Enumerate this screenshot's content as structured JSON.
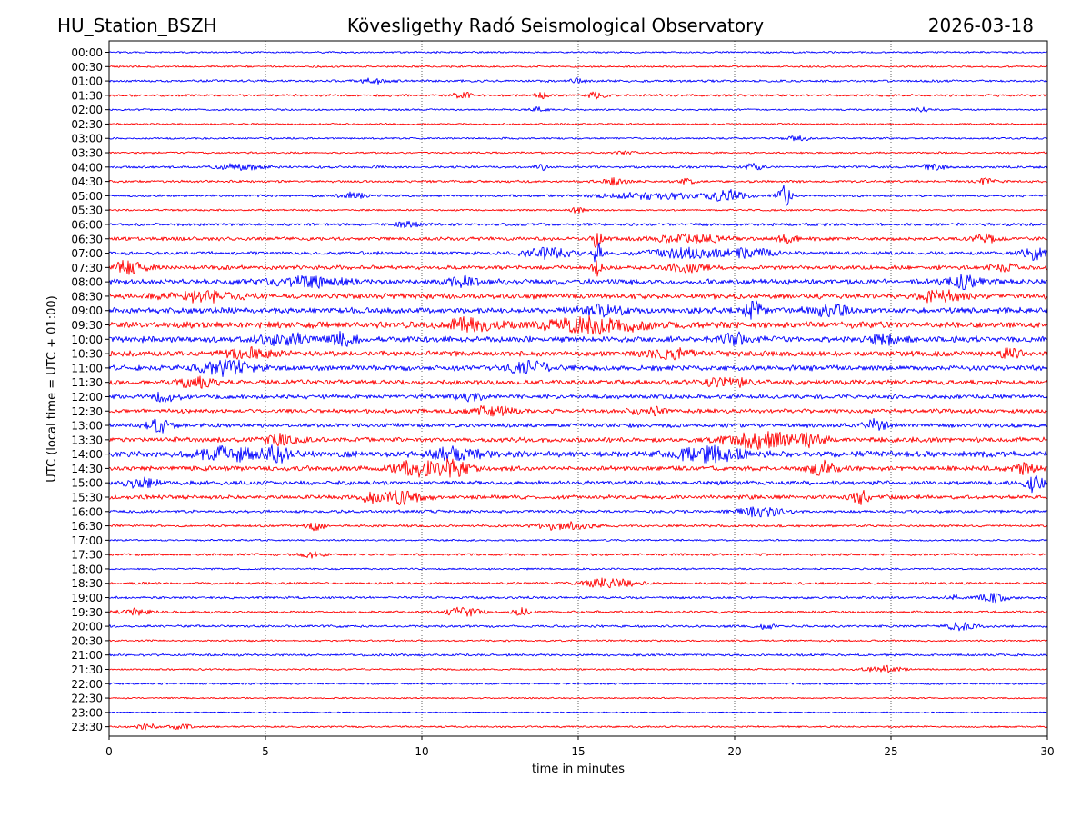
{
  "header": {
    "station": "HU_Station_BSZH",
    "observatory": "Kövesligethy Radó Seismological Observatory",
    "date": "2026-03-18"
  },
  "chart_data": {
    "type": "line",
    "title": "Kövesligethy Radó Seismological Observatory",
    "xlabel": "time in minutes",
    "ylabel": "UTC (local time = UTC + 01:00)",
    "xlim": [
      0,
      30
    ],
    "x_ticks": [
      "0",
      "5",
      "10",
      "15",
      "20",
      "25",
      "30"
    ],
    "grid": "vertical dotted at 5-minute intervals",
    "trace_colors": [
      "#0000ff",
      "#ff0000"
    ],
    "traces": [
      {
        "label": "00:00",
        "color": "#0000ff",
        "amplitude": 0.15,
        "bursts": []
      },
      {
        "label": "00:30",
        "color": "#ff0000",
        "amplitude": 0.15,
        "bursts": []
      },
      {
        "label": "01:00",
        "color": "#0000ff",
        "amplitude": 0.2,
        "bursts": [
          {
            "t": 8.5,
            "a": 0.35,
            "w": 0.3
          },
          {
            "t": 15,
            "a": 0.3,
            "w": 0.2
          }
        ]
      },
      {
        "label": "01:30",
        "color": "#ff0000",
        "amplitude": 0.2,
        "bursts": [
          {
            "t": 11.3,
            "a": 0.4,
            "w": 0.2
          },
          {
            "t": 13.8,
            "a": 0.4,
            "w": 0.15
          },
          {
            "t": 15.6,
            "a": 0.45,
            "w": 0.2
          }
        ]
      },
      {
        "label": "02:00",
        "color": "#0000ff",
        "amplitude": 0.15,
        "bursts": [
          {
            "t": 13.7,
            "a": 0.3,
            "w": 0.2
          },
          {
            "t": 26,
            "a": 0.3,
            "w": 0.2
          }
        ]
      },
      {
        "label": "02:30",
        "color": "#ff0000",
        "amplitude": 0.15,
        "bursts": []
      },
      {
        "label": "03:00",
        "color": "#0000ff",
        "amplitude": 0.15,
        "bursts": [
          {
            "t": 22,
            "a": 0.3,
            "w": 0.3
          }
        ]
      },
      {
        "label": "03:30",
        "color": "#ff0000",
        "amplitude": 0.15,
        "bursts": [
          {
            "t": 16.5,
            "a": 0.3,
            "w": 0.2
          }
        ]
      },
      {
        "label": "04:00",
        "color": "#0000ff",
        "amplitude": 0.2,
        "bursts": [
          {
            "t": 4.2,
            "a": 0.45,
            "w": 0.5
          },
          {
            "t": 13.8,
            "a": 0.4,
            "w": 0.15
          },
          {
            "t": 20.6,
            "a": 0.45,
            "w": 0.2
          },
          {
            "t": 26.3,
            "a": 0.35,
            "w": 0.3
          }
        ]
      },
      {
        "label": "04:30",
        "color": "#ff0000",
        "amplitude": 0.2,
        "bursts": [
          {
            "t": 16.1,
            "a": 0.5,
            "w": 0.3
          },
          {
            "t": 18.5,
            "a": 0.45,
            "w": 0.15
          },
          {
            "t": 28,
            "a": 0.4,
            "w": 0.2
          }
        ]
      },
      {
        "label": "05:00",
        "color": "#0000ff",
        "amplitude": 0.2,
        "bursts": [
          {
            "t": 7.8,
            "a": 0.45,
            "w": 0.3
          },
          {
            "t": 17.5,
            "a": 0.45,
            "w": 1.2
          },
          {
            "t": 19.8,
            "a": 0.7,
            "w": 0.4
          },
          {
            "t": 21.6,
            "a": 1.6,
            "w": 0.15
          }
        ]
      },
      {
        "label": "05:30",
        "color": "#ff0000",
        "amplitude": 0.15,
        "bursts": [
          {
            "t": 15,
            "a": 0.45,
            "w": 0.15
          }
        ]
      },
      {
        "label": "06:00",
        "color": "#0000ff",
        "amplitude": 0.25,
        "bursts": [
          {
            "t": 9.5,
            "a": 0.4,
            "w": 0.3
          }
        ]
      },
      {
        "label": "06:30",
        "color": "#ff0000",
        "amplitude": 0.3,
        "bursts": [
          {
            "t": 15.6,
            "a": 1.3,
            "w": 0.1
          },
          {
            "t": 18.5,
            "a": 0.6,
            "w": 0.8
          },
          {
            "t": 21.6,
            "a": 0.5,
            "w": 0.3
          },
          {
            "t": 28,
            "a": 0.5,
            "w": 0.3
          }
        ]
      },
      {
        "label": "07:00",
        "color": "#0000ff",
        "amplitude": 0.3,
        "bursts": [
          {
            "t": 14,
            "a": 0.7,
            "w": 0.6
          },
          {
            "t": 15.6,
            "a": 1.6,
            "w": 0.1
          },
          {
            "t": 18.3,
            "a": 0.6,
            "w": 0.8
          },
          {
            "t": 20.4,
            "a": 0.7,
            "w": 0.6
          },
          {
            "t": 29.6,
            "a": 0.8,
            "w": 0.3
          }
        ]
      },
      {
        "label": "07:30",
        "color": "#ff0000",
        "amplitude": 0.35,
        "bursts": [
          {
            "t": 0.6,
            "a": 0.8,
            "w": 0.4
          },
          {
            "t": 15.6,
            "a": 1.2,
            "w": 0.1
          },
          {
            "t": 18.5,
            "a": 0.5,
            "w": 0.5
          },
          {
            "t": 28.6,
            "a": 0.5,
            "w": 0.3
          }
        ]
      },
      {
        "label": "08:00",
        "color": "#0000ff",
        "amplitude": 0.45,
        "bursts": [
          {
            "t": 6.5,
            "a": 0.7,
            "w": 0.8
          },
          {
            "t": 11.3,
            "a": 0.7,
            "w": 0.3
          },
          {
            "t": 27.2,
            "a": 0.8,
            "w": 0.5
          }
        ]
      },
      {
        "label": "08:30",
        "color": "#ff0000",
        "amplitude": 0.45,
        "bursts": [
          {
            "t": 3,
            "a": 0.7,
            "w": 0.8
          },
          {
            "t": 26.5,
            "a": 0.7,
            "w": 0.5
          }
        ]
      },
      {
        "label": "09:00",
        "color": "#0000ff",
        "amplitude": 0.5,
        "bursts": [
          {
            "t": 15.8,
            "a": 0.7,
            "w": 0.5
          },
          {
            "t": 20.6,
            "a": 1.1,
            "w": 0.2
          },
          {
            "t": 23,
            "a": 0.8,
            "w": 0.4
          }
        ]
      },
      {
        "label": "09:30",
        "color": "#ff0000",
        "amplitude": 0.55,
        "bursts": [
          {
            "t": 15.5,
            "a": 0.9,
            "w": 1.2
          },
          {
            "t": 11.5,
            "a": 0.8,
            "w": 0.5
          }
        ]
      },
      {
        "label": "10:00",
        "color": "#0000ff",
        "amplitude": 0.5,
        "bursts": [
          {
            "t": 5.6,
            "a": 0.8,
            "w": 0.6
          },
          {
            "t": 7.5,
            "a": 0.8,
            "w": 0.3
          },
          {
            "t": 20,
            "a": 0.8,
            "w": 0.3
          },
          {
            "t": 24.8,
            "a": 0.7,
            "w": 0.3
          }
        ]
      },
      {
        "label": "10:30",
        "color": "#ff0000",
        "amplitude": 0.45,
        "bursts": [
          {
            "t": 4.5,
            "a": 0.7,
            "w": 0.6
          },
          {
            "t": 18,
            "a": 0.6,
            "w": 0.5
          },
          {
            "t": 28.8,
            "a": 0.7,
            "w": 0.2
          }
        ]
      },
      {
        "label": "11:00",
        "color": "#0000ff",
        "amplitude": 0.45,
        "bursts": [
          {
            "t": 3.8,
            "a": 0.9,
            "w": 0.6
          },
          {
            "t": 13.5,
            "a": 0.7,
            "w": 0.5
          }
        ]
      },
      {
        "label": "11:30",
        "color": "#ff0000",
        "amplitude": 0.4,
        "bursts": [
          {
            "t": 2.8,
            "a": 0.7,
            "w": 0.4
          },
          {
            "t": 19.8,
            "a": 0.6,
            "w": 0.6
          }
        ]
      },
      {
        "label": "12:00",
        "color": "#0000ff",
        "amplitude": 0.35,
        "bursts": [
          {
            "t": 1.8,
            "a": 0.6,
            "w": 0.3
          },
          {
            "t": 11.5,
            "a": 0.5,
            "w": 0.3
          }
        ]
      },
      {
        "label": "12:30",
        "color": "#ff0000",
        "amplitude": 0.35,
        "bursts": [
          {
            "t": 12.3,
            "a": 0.6,
            "w": 0.5
          },
          {
            "t": 17.2,
            "a": 0.5,
            "w": 0.4
          }
        ]
      },
      {
        "label": "13:00",
        "color": "#0000ff",
        "amplitude": 0.35,
        "bursts": [
          {
            "t": 1.6,
            "a": 0.9,
            "w": 0.3
          },
          {
            "t": 24.5,
            "a": 0.8,
            "w": 0.25
          }
        ]
      },
      {
        "label": "13:30",
        "color": "#ff0000",
        "amplitude": 0.4,
        "bursts": [
          {
            "t": 20.8,
            "a": 1.1,
            "w": 0.8
          },
          {
            "t": 22.5,
            "a": 0.7,
            "w": 0.4
          },
          {
            "t": 5.5,
            "a": 0.6,
            "w": 0.4
          }
        ]
      },
      {
        "label": "14:00",
        "color": "#0000ff",
        "amplitude": 0.5,
        "bursts": [
          {
            "t": 3.8,
            "a": 0.9,
            "w": 0.6
          },
          {
            "t": 5.4,
            "a": 1.0,
            "w": 0.3
          },
          {
            "t": 11,
            "a": 0.8,
            "w": 0.6
          },
          {
            "t": 19.2,
            "a": 0.9,
            "w": 0.8
          }
        ]
      },
      {
        "label": "14:30",
        "color": "#ff0000",
        "amplitude": 0.4,
        "bursts": [
          {
            "t": 9.6,
            "a": 0.9,
            "w": 0.4
          },
          {
            "t": 10.8,
            "a": 1.2,
            "w": 0.5
          },
          {
            "t": 22.8,
            "a": 0.9,
            "w": 0.3
          },
          {
            "t": 29.2,
            "a": 0.6,
            "w": 0.3
          }
        ]
      },
      {
        "label": "15:00",
        "color": "#0000ff",
        "amplitude": 0.35,
        "bursts": [
          {
            "t": 29.6,
            "a": 1.3,
            "w": 0.2
          },
          {
            "t": 1.0,
            "a": 0.6,
            "w": 0.4
          }
        ]
      },
      {
        "label": "15:30",
        "color": "#ff0000",
        "amplitude": 0.35,
        "bursts": [
          {
            "t": 9.3,
            "a": 0.9,
            "w": 0.5
          },
          {
            "t": 24,
            "a": 0.9,
            "w": 0.2
          },
          {
            "t": 8.3,
            "a": 0.6,
            "w": 0.2
          }
        ]
      },
      {
        "label": "16:00",
        "color": "#0000ff",
        "amplitude": 0.25,
        "bursts": [
          {
            "t": 20.8,
            "a": 0.7,
            "w": 0.5
          }
        ]
      },
      {
        "label": "16:30",
        "color": "#ff0000",
        "amplitude": 0.2,
        "bursts": [
          {
            "t": 6.6,
            "a": 0.6,
            "w": 0.2
          },
          {
            "t": 14.5,
            "a": 0.6,
            "w": 0.6
          }
        ]
      },
      {
        "label": "17:00",
        "color": "#0000ff",
        "amplitude": 0.15,
        "bursts": []
      },
      {
        "label": "17:30",
        "color": "#ff0000",
        "amplitude": 0.2,
        "bursts": [
          {
            "t": 6.5,
            "a": 0.35,
            "w": 0.3
          }
        ]
      },
      {
        "label": "18:00",
        "color": "#0000ff",
        "amplitude": 0.15,
        "bursts": []
      },
      {
        "label": "18:30",
        "color": "#ff0000",
        "amplitude": 0.2,
        "bursts": [
          {
            "t": 16,
            "a": 0.7,
            "w": 0.6
          }
        ]
      },
      {
        "label": "19:00",
        "color": "#0000ff",
        "amplitude": 0.2,
        "bursts": [
          {
            "t": 28.3,
            "a": 0.6,
            "w": 0.3
          },
          {
            "t": 27,
            "a": 0.4,
            "w": 0.15
          }
        ]
      },
      {
        "label": "19:30",
        "color": "#ff0000",
        "amplitude": 0.2,
        "bursts": [
          {
            "t": 0.8,
            "a": 0.5,
            "w": 0.3
          },
          {
            "t": 11.3,
            "a": 0.6,
            "w": 0.4
          },
          {
            "t": 13.2,
            "a": 0.5,
            "w": 0.2
          }
        ]
      },
      {
        "label": "20:00",
        "color": "#0000ff",
        "amplitude": 0.2,
        "bursts": [
          {
            "t": 27.2,
            "a": 0.55,
            "w": 0.3
          },
          {
            "t": 21,
            "a": 0.4,
            "w": 0.2
          }
        ]
      },
      {
        "label": "20:30",
        "color": "#ff0000",
        "amplitude": 0.15,
        "bursts": []
      },
      {
        "label": "21:00",
        "color": "#0000ff",
        "amplitude": 0.2,
        "bursts": []
      },
      {
        "label": "21:30",
        "color": "#ff0000",
        "amplitude": 0.15,
        "bursts": [
          {
            "t": 24.8,
            "a": 0.45,
            "w": 0.4
          }
        ]
      },
      {
        "label": "22:00",
        "color": "#0000ff",
        "amplitude": 0.15,
        "bursts": []
      },
      {
        "label": "22:30",
        "color": "#ff0000",
        "amplitude": 0.12,
        "bursts": []
      },
      {
        "label": "23:00",
        "color": "#0000ff",
        "amplitude": 0.1,
        "bursts": []
      },
      {
        "label": "23:30",
        "color": "#ff0000",
        "amplitude": 0.15,
        "bursts": [
          {
            "t": 1.2,
            "a": 0.5,
            "w": 0.2
          },
          {
            "t": 2.3,
            "a": 0.45,
            "w": 0.2
          }
        ]
      }
    ]
  }
}
